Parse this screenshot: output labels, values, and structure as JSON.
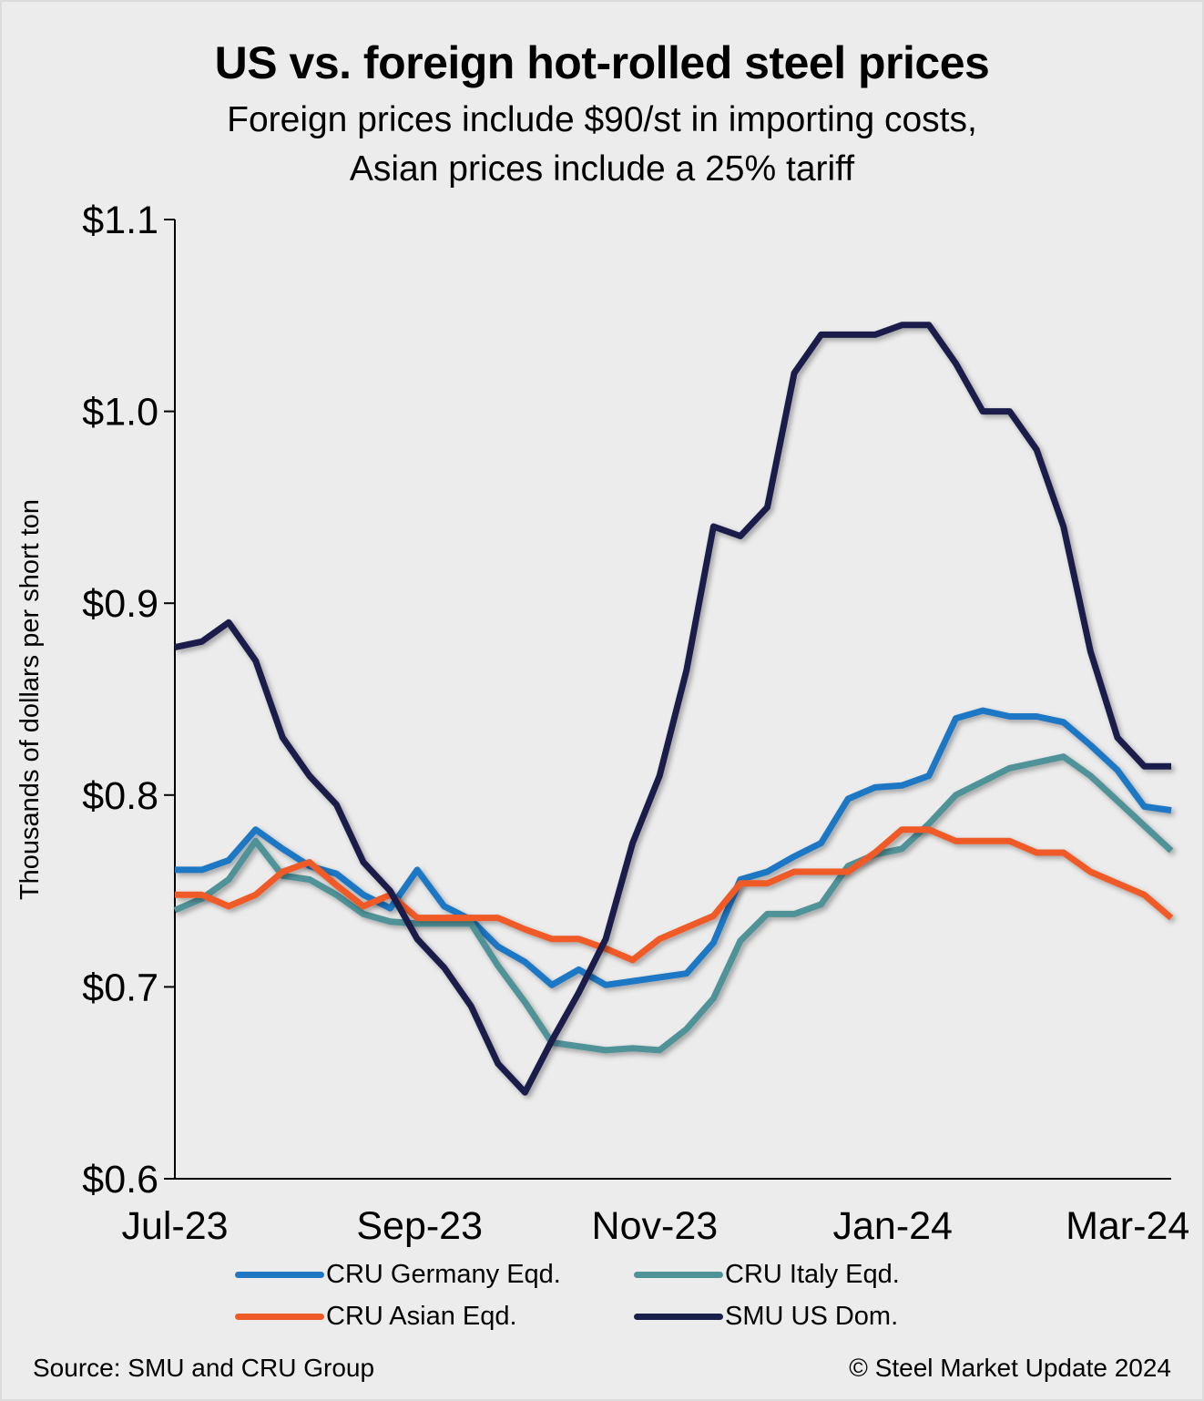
{
  "title": "US vs. foreign hot-rolled steel prices",
  "subtitle_line1": "Foreign prices include $90/st in importing costs,",
  "subtitle_line2": "Asian prices include a 25% tariff",
  "source": "Source: SMU and CRU Group",
  "copyright": "© Steel Market Update 2024",
  "chart_data": {
    "type": "line",
    "ylabel": "Thousands of dollars per short ton",
    "xlabel": "",
    "ylim": [
      0.6,
      1.1
    ],
    "yticks": [
      0.6,
      0.7,
      0.8,
      0.9,
      1.0,
      1.1
    ],
    "ytick_labels": [
      "$0.6",
      "$0.7",
      "$0.8",
      "$0.9",
      "$1.0",
      "$1.1"
    ],
    "xtick_labels": [
      "Jul-23",
      "Sep-23",
      "Nov-23",
      "Jan-24",
      "Mar-24"
    ],
    "grid": false,
    "legend_position": "bottom",
    "series": [
      {
        "name": "CRU Germany Eqd.",
        "color": "#1f77c4",
        "values": [
          0.761,
          0.761,
          0.766,
          0.782,
          0.772,
          0.763,
          0.759,
          0.748,
          0.741,
          0.761,
          0.742,
          0.735,
          0.721,
          0.713,
          0.701,
          0.709,
          0.701,
          0.703,
          0.705,
          0.707,
          0.723,
          0.756,
          0.76,
          0.768,
          0.775,
          0.798,
          0.804,
          0.805,
          0.81,
          0.84,
          0.844,
          0.841,
          0.841,
          0.838,
          0.826,
          0.813,
          0.794,
          0.792
        ]
      },
      {
        "name": "CRU Italy Eqd.",
        "color": "#4f9298",
        "values": [
          0.74,
          0.746,
          0.756,
          0.776,
          0.758,
          0.756,
          0.748,
          0.738,
          0.734,
          0.733,
          0.733,
          0.733,
          0.711,
          0.692,
          0.671,
          0.669,
          0.667,
          0.668,
          0.667,
          0.678,
          0.694,
          0.724,
          0.738,
          0.738,
          0.743,
          0.763,
          0.769,
          0.772,
          0.785,
          0.8,
          0.807,
          0.814,
          0.817,
          0.82,
          0.81,
          0.797,
          0.784,
          0.771
        ]
      },
      {
        "name": "CRU Asian Eqd.",
        "color": "#f05a28",
        "values": [
          0.748,
          0.748,
          0.742,
          0.748,
          0.76,
          0.765,
          0.753,
          0.742,
          0.748,
          0.736,
          0.736,
          0.736,
          0.736,
          0.73,
          0.725,
          0.725,
          0.72,
          0.714,
          0.725,
          0.731,
          0.737,
          0.754,
          0.754,
          0.76,
          0.76,
          0.76,
          0.77,
          0.782,
          0.782,
          0.776,
          0.776,
          0.776,
          0.77,
          0.77,
          0.76,
          0.754,
          0.748,
          0.736
        ]
      },
      {
        "name": "SMU US Dom.",
        "color": "#1b1f4b",
        "values": [
          0.877,
          0.88,
          0.89,
          0.87,
          0.83,
          0.81,
          0.795,
          0.765,
          0.75,
          0.725,
          0.71,
          0.69,
          0.66,
          0.645,
          0.672,
          0.697,
          0.725,
          0.775,
          0.81,
          0.865,
          0.94,
          0.935,
          0.95,
          1.02,
          1.04,
          1.04,
          1.04,
          1.045,
          1.045,
          1.025,
          1.0,
          1.0,
          0.98,
          0.94,
          0.875,
          0.83,
          0.815,
          0.815
        ]
      }
    ]
  }
}
